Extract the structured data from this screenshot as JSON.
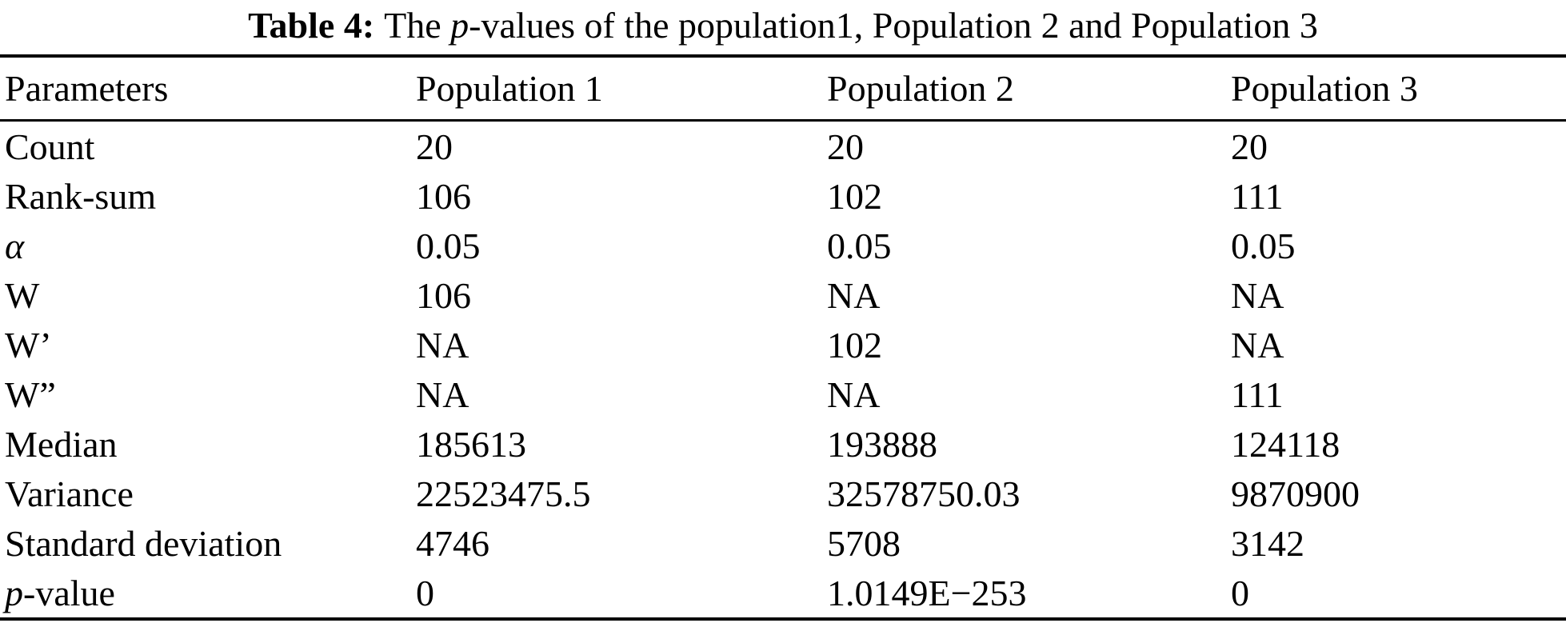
{
  "title": {
    "segments": [
      {
        "text": "Table 4:",
        "style": "bold"
      },
      {
        "text": "The ",
        "style": "normal"
      },
      {
        "text": "p",
        "style": "italic"
      },
      {
        "text": "-values of the population1, Population 2 and Population 3",
        "style": "normal"
      }
    ]
  },
  "table": {
    "columns": [
      "Parameters",
      "Population 1",
      "Population 2",
      "Population 3"
    ],
    "rows": [
      {
        "param": [
          {
            "text": "Count",
            "style": "normal"
          }
        ],
        "values": [
          "20",
          "20",
          "20"
        ]
      },
      {
        "param": [
          {
            "text": "Rank-sum",
            "style": "normal"
          }
        ],
        "values": [
          "106",
          "102",
          "111"
        ]
      },
      {
        "param": [
          {
            "text": "α",
            "style": "italic"
          }
        ],
        "values": [
          "0.05",
          "0.05",
          "0.05"
        ]
      },
      {
        "param": [
          {
            "text": "W",
            "style": "normal"
          }
        ],
        "values": [
          "106",
          "NA",
          "NA"
        ]
      },
      {
        "param": [
          {
            "text": "W’",
            "style": "normal"
          }
        ],
        "values": [
          "NA",
          "102",
          "NA"
        ]
      },
      {
        "param": [
          {
            "text": "W”",
            "style": "normal"
          }
        ],
        "values": [
          "NA",
          "NA",
          "111"
        ]
      },
      {
        "param": [
          {
            "text": "Median",
            "style": "normal"
          }
        ],
        "values": [
          "185613",
          "193888",
          "124118"
        ]
      },
      {
        "param": [
          {
            "text": "Variance",
            "style": "normal"
          }
        ],
        "values": [
          "22523475.5",
          "32578750.03",
          "9870900"
        ]
      },
      {
        "param": [
          {
            "text": "Standard deviation",
            "style": "normal"
          }
        ],
        "values": [
          "4746",
          "5708",
          "3142"
        ]
      },
      {
        "param": [
          {
            "text": "p",
            "style": "italic"
          },
          {
            "text": "-value",
            "style": "normal"
          }
        ],
        "values": [
          "0",
          "1.0149E−253",
          "0"
        ]
      }
    ]
  },
  "colors": {
    "text": "#000000",
    "background": "#ffffff",
    "rule": "#000000"
  }
}
